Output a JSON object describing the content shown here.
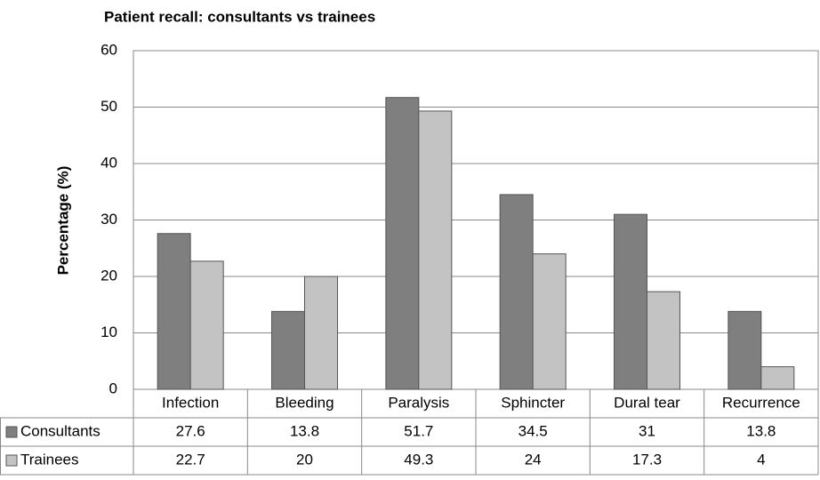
{
  "chart_data": {
    "type": "bar",
    "title": "Patient recall: consultants vs trainees",
    "y_label": "Percentage (%)",
    "categories": [
      "Infection",
      "Bleeding",
      "Paralysis",
      "Sphincter",
      "Dural tear",
      "Recurrence"
    ],
    "series": [
      {
        "name": "Consultants",
        "color": "#7f7f7f",
        "values": [
          27.6,
          13.8,
          51.7,
          34.5,
          31,
          13.8
        ]
      },
      {
        "name": "Trainees",
        "color": "#c3c3c3",
        "values": [
          22.7,
          20,
          49.3,
          24,
          17.3,
          4
        ]
      }
    ],
    "ylim": [
      0,
      60
    ],
    "yticks": [
      0,
      10,
      20,
      30,
      40,
      50,
      60
    ],
    "grid": true
  }
}
